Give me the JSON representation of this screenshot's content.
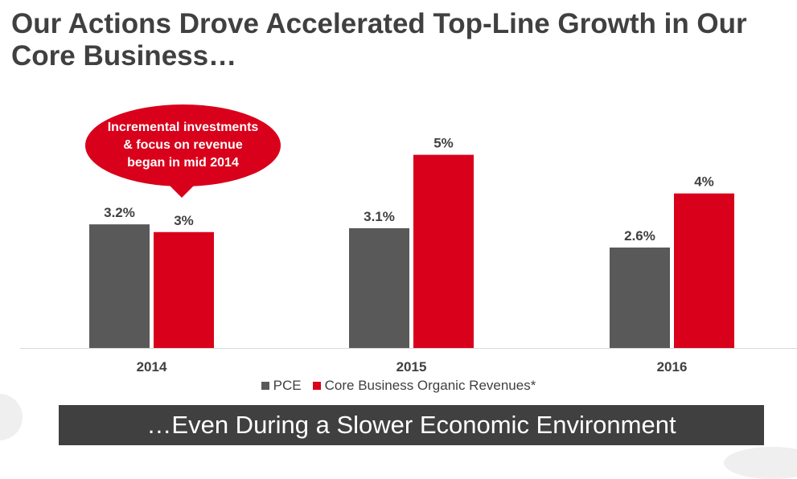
{
  "header": {
    "title": "Our Actions Drove Accelerated Top-Line Growth in Our Core Business…"
  },
  "callout": {
    "text": "Incremental investments & focus on revenue began in mid 2014"
  },
  "banner": {
    "text": "…Even During a Slower Economic Environment"
  },
  "colors": {
    "pce": "#595959",
    "core": "#d9001b",
    "text": "#404040",
    "banner_bg": "#404040"
  },
  "chart_data": {
    "type": "bar",
    "categories": [
      "2014",
      "2015",
      "2016"
    ],
    "series": [
      {
        "name": "PCE",
        "values": [
          3.2,
          3.1,
          2.6
        ],
        "labels": [
          "3.2%",
          "3.1%",
          "2.6%"
        ]
      },
      {
        "name": "Core Business Organic Revenues*",
        "values": [
          3,
          5,
          4
        ],
        "labels": [
          "3%",
          "5%",
          "4%"
        ]
      }
    ],
    "title": "",
    "xlabel": "",
    "ylabel": "",
    "ylim": [
      0,
      5.2
    ],
    "grid": false,
    "legend": "bottom"
  }
}
